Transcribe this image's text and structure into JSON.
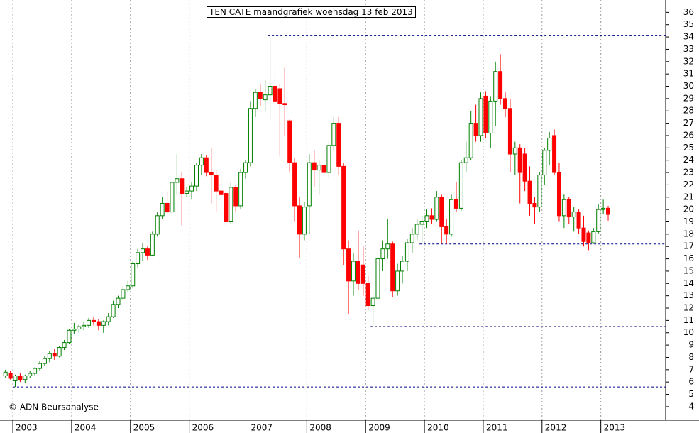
{
  "chart_data": {
    "type": "candlestick",
    "title": "TEN CATE maandgrafiek woensdag 13 feb 2013",
    "footer": "© ADN Beursanalyse",
    "up_color": "#008000",
    "down_color": "#ff0000",
    "level_color": "#000080",
    "categories": [
      null,
      null,
      "2003",
      null,
      null,
      null,
      null,
      null,
      null,
      null,
      null,
      null,
      null,
      null,
      "2004",
      null,
      null,
      null,
      null,
      null,
      null,
      null,
      null,
      null,
      null,
      null,
      "2005",
      null,
      null,
      null,
      null,
      null,
      null,
      null,
      null,
      null,
      null,
      null,
      "2006",
      null,
      null,
      null,
      null,
      null,
      null,
      null,
      null,
      null,
      null,
      null,
      "2007",
      null,
      null,
      null,
      null,
      null,
      null,
      null,
      null,
      null,
      null,
      null,
      "2008",
      null,
      null,
      null,
      null,
      null,
      null,
      null,
      null,
      null,
      null,
      null,
      "2009",
      null,
      null,
      null,
      null,
      null,
      null,
      null,
      null,
      null,
      null,
      null,
      "2010",
      null,
      null,
      null,
      null,
      null,
      null,
      null,
      null,
      null,
      null,
      null,
      "2011",
      null,
      null,
      null,
      null,
      null,
      null,
      null,
      null,
      null,
      null,
      null,
      "2012",
      null,
      null,
      null,
      null,
      null,
      null,
      null,
      null,
      null,
      null,
      null,
      "2013",
      null
    ],
    "ohlc": [
      [
        6.5,
        7.0,
        6.3,
        6.8
      ],
      [
        6.7,
        6.9,
        6.2,
        6.3
      ],
      [
        6.1,
        6.6,
        5.6,
        6.5
      ],
      [
        6.5,
        6.7,
        6.0,
        6.2
      ],
      [
        6.2,
        6.6,
        5.9,
        6.5
      ],
      [
        6.5,
        6.9,
        6.3,
        6.7
      ],
      [
        6.7,
        7.2,
        6.5,
        7.1
      ],
      [
        7.1,
        7.7,
        6.9,
        7.5
      ],
      [
        7.5,
        8.1,
        7.3,
        7.9
      ],
      [
        7.9,
        8.5,
        7.6,
        8.3
      ],
      [
        8.3,
        8.7,
        7.8,
        8.1
      ],
      [
        8.1,
        8.9,
        8.0,
        8.8
      ],
      [
        8.8,
        9.4,
        8.6,
        9.2
      ],
      [
        9.2,
        10.3,
        9.1,
        10.2
      ],
      [
        10.2,
        10.8,
        9.9,
        10.3
      ],
      [
        10.3,
        10.7,
        10.0,
        10.5
      ],
      [
        10.5,
        10.9,
        10.2,
        10.6
      ],
      [
        10.6,
        11.2,
        10.4,
        11.0
      ],
      [
        11.0,
        11.3,
        10.6,
        10.9
      ],
      [
        10.9,
        11.1,
        10.2,
        10.6
      ],
      [
        10.6,
        11.0,
        10.0,
        10.9
      ],
      [
        10.9,
        11.6,
        10.6,
        11.3
      ],
      [
        11.3,
        12.6,
        11.2,
        12.3
      ],
      [
        12.3,
        13.0,
        12.0,
        12.8
      ],
      [
        12.8,
        13.8,
        12.6,
        13.5
      ],
      [
        13.5,
        14.2,
        13.3,
        13.8
      ],
      [
        13.8,
        15.8,
        13.6,
        15.6
      ],
      [
        15.6,
        16.8,
        15.3,
        16.5
      ],
      [
        16.5,
        17.3,
        15.8,
        16.8
      ],
      [
        16.8,
        17.0,
        15.9,
        16.3
      ],
      [
        16.3,
        18.2,
        16.2,
        18.0
      ],
      [
        18.0,
        19.8,
        17.8,
        19.5
      ],
      [
        19.5,
        21.0,
        19.2,
        20.5
      ],
      [
        20.5,
        21.5,
        19.6,
        19.8
      ],
      [
        19.8,
        22.8,
        19.5,
        22.2
      ],
      [
        22.2,
        24.5,
        21.2,
        22.5
      ],
      [
        22.5,
        23.0,
        18.7,
        21.3
      ],
      [
        21.3,
        21.8,
        21.0,
        21.5
      ],
      [
        21.5,
        22.2,
        20.8,
        21.9
      ],
      [
        21.9,
        23.8,
        21.5,
        23.6
      ],
      [
        23.6,
        24.5,
        22.8,
        24.2
      ],
      [
        24.2,
        24.4,
        22.7,
        23.0
      ],
      [
        23.0,
        25.0,
        20.5,
        22.8
      ],
      [
        22.8,
        23.2,
        19.8,
        21.5
      ],
      [
        21.5,
        23.0,
        19.5,
        21.2
      ],
      [
        21.3,
        21.5,
        18.7,
        19.0
      ],
      [
        19.0,
        22.2,
        18.8,
        21.8
      ],
      [
        21.8,
        22.0,
        19.8,
        20.3
      ],
      [
        20.3,
        23.3,
        20.0,
        23.0
      ],
      [
        23.0,
        24.0,
        22.5,
        23.8
      ],
      [
        23.8,
        28.8,
        23.5,
        28.2
      ],
      [
        28.2,
        29.8,
        27.5,
        29.5
      ],
      [
        29.5,
        30.2,
        28.4,
        29.0
      ],
      [
        28.9,
        30.5,
        28.0,
        29.3
      ],
      [
        29.3,
        34.1,
        27.3,
        30.0
      ],
      [
        30.0,
        31.6,
        28.6,
        28.8
      ],
      [
        29.8,
        30.2,
        24.3,
        28.6
      ],
      [
        28.6,
        31.5,
        26.0,
        28.5
      ],
      [
        27.2,
        27.3,
        23.0,
        23.8
      ],
      [
        23.8,
        24.2,
        19.0,
        20.3
      ],
      [
        20.3,
        21.0,
        16.1,
        18.0
      ],
      [
        18.0,
        20.6,
        17.5,
        20.2
      ],
      [
        20.3,
        24.5,
        18.0,
        23.8
      ],
      [
        23.8,
        24.8,
        21.8,
        23.2
      ],
      [
        23.2,
        24.0,
        21.2,
        23.6
      ],
      [
        23.6,
        24.8,
        22.6,
        23.0
      ],
      [
        23.0,
        25.5,
        22.5,
        25.2
      ],
      [
        25.2,
        27.5,
        24.8,
        27.0
      ],
      [
        27.0,
        27.5,
        22.8,
        23.5
      ],
      [
        23.5,
        23.8,
        15.5,
        16.8
      ],
      [
        16.8,
        17.5,
        11.5,
        14.2
      ],
      [
        14.2,
        16.5,
        13.0,
        15.8
      ],
      [
        15.8,
        18.3,
        13.5,
        14.0
      ],
      [
        15.5,
        17.0,
        13.0,
        14.0
      ],
      [
        14.0,
        14.6,
        11.8,
        12.2
      ],
      [
        12.2,
        13.2,
        10.5,
        12.8
      ],
      [
        12.8,
        16.5,
        12.5,
        16.0
      ],
      [
        16.0,
        17.5,
        15.0,
        16.8
      ],
      [
        16.8,
        19.2,
        16.0,
        17.2
      ],
      [
        17.2,
        17.4,
        12.9,
        13.4
      ],
      [
        13.4,
        15.6,
        13.0,
        15.0
      ],
      [
        15.0,
        16.2,
        14.0,
        15.8
      ],
      [
        15.8,
        17.6,
        15.0,
        17.3
      ],
      [
        17.3,
        18.5,
        16.5,
        18.0
      ],
      [
        18.0,
        19.2,
        17.5,
        18.8
      ],
      [
        18.8,
        19.5,
        17.2,
        19.0
      ],
      [
        19.0,
        20.0,
        18.5,
        19.5
      ],
      [
        19.5,
        20.1,
        18.8,
        19.2
      ],
      [
        19.2,
        21.5,
        19.0,
        21.0
      ],
      [
        21.0,
        21.2,
        17.3,
        18.6
      ],
      [
        18.6,
        19.2,
        17.2,
        18.0
      ],
      [
        18.0,
        21.2,
        17.8,
        20.8
      ],
      [
        20.8,
        22.2,
        19.8,
        20.1
      ],
      [
        20.1,
        24.0,
        19.9,
        23.8
      ],
      [
        23.8,
        25.5,
        23.0,
        24.2
      ],
      [
        24.2,
        28.0,
        24.0,
        27.0
      ],
      [
        27.0,
        28.5,
        25.5,
        26.0
      ],
      [
        26.0,
        29.5,
        25.5,
        29.0
      ],
      [
        29.2,
        29.6,
        25.8,
        26.2
      ],
      [
        26.2,
        29.2,
        25.0,
        28.8
      ],
      [
        28.8,
        32.0,
        26.8,
        31.2
      ],
      [
        31.2,
        32.6,
        28.5,
        29.0
      ],
      [
        29.0,
        29.5,
        27.5,
        28.2
      ],
      [
        28.2,
        29.0,
        23.0,
        24.5
      ],
      [
        24.5,
        25.5,
        22.8,
        25.0
      ],
      [
        25.0,
        25.3,
        20.5,
        23.0
      ],
      [
        24.5,
        25.0,
        21.5,
        22.3
      ],
      [
        22.3,
        23.5,
        19.5,
        20.5
      ],
      [
        20.5,
        21.0,
        18.8,
        20.2
      ],
      [
        20.2,
        23.0,
        19.8,
        22.8
      ],
      [
        22.8,
        25.0,
        22.0,
        24.8
      ],
      [
        24.8,
        26.3,
        23.6,
        25.8
      ],
      [
        26.0,
        26.5,
        22.8,
        23.0
      ],
      [
        23.0,
        23.8,
        19.0,
        19.5
      ],
      [
        19.5,
        21.2,
        18.5,
        20.8
      ],
      [
        20.8,
        21.0,
        18.8,
        19.4
      ],
      [
        19.4,
        20.2,
        18.2,
        19.8
      ],
      [
        19.8,
        20.0,
        18.0,
        18.5
      ],
      [
        18.5,
        19.5,
        17.0,
        17.4
      ],
      [
        18.1,
        18.3,
        16.7,
        17.3
      ],
      [
        17.3,
        18.5,
        17.2,
        18.2
      ],
      [
        18.2,
        20.4,
        18.0,
        20.0
      ],
      [
        20.0,
        20.8,
        19.6,
        20.1
      ],
      [
        20.1,
        20.3,
        19.1,
        19.6
      ]
    ],
    "levels": [
      34.1,
      17.2,
      10.5,
      5.6
    ],
    "ylim": [
      2.9,
      37
    ],
    "yticks": [
      4,
      5,
      6,
      7,
      8,
      9,
      10,
      11,
      12,
      13,
      14,
      15,
      16,
      17,
      18,
      19,
      20,
      21,
      22,
      23,
      24,
      25,
      26,
      27,
      28,
      29,
      30,
      31,
      32,
      33,
      34,
      35,
      36
    ],
    "grid": true
  }
}
